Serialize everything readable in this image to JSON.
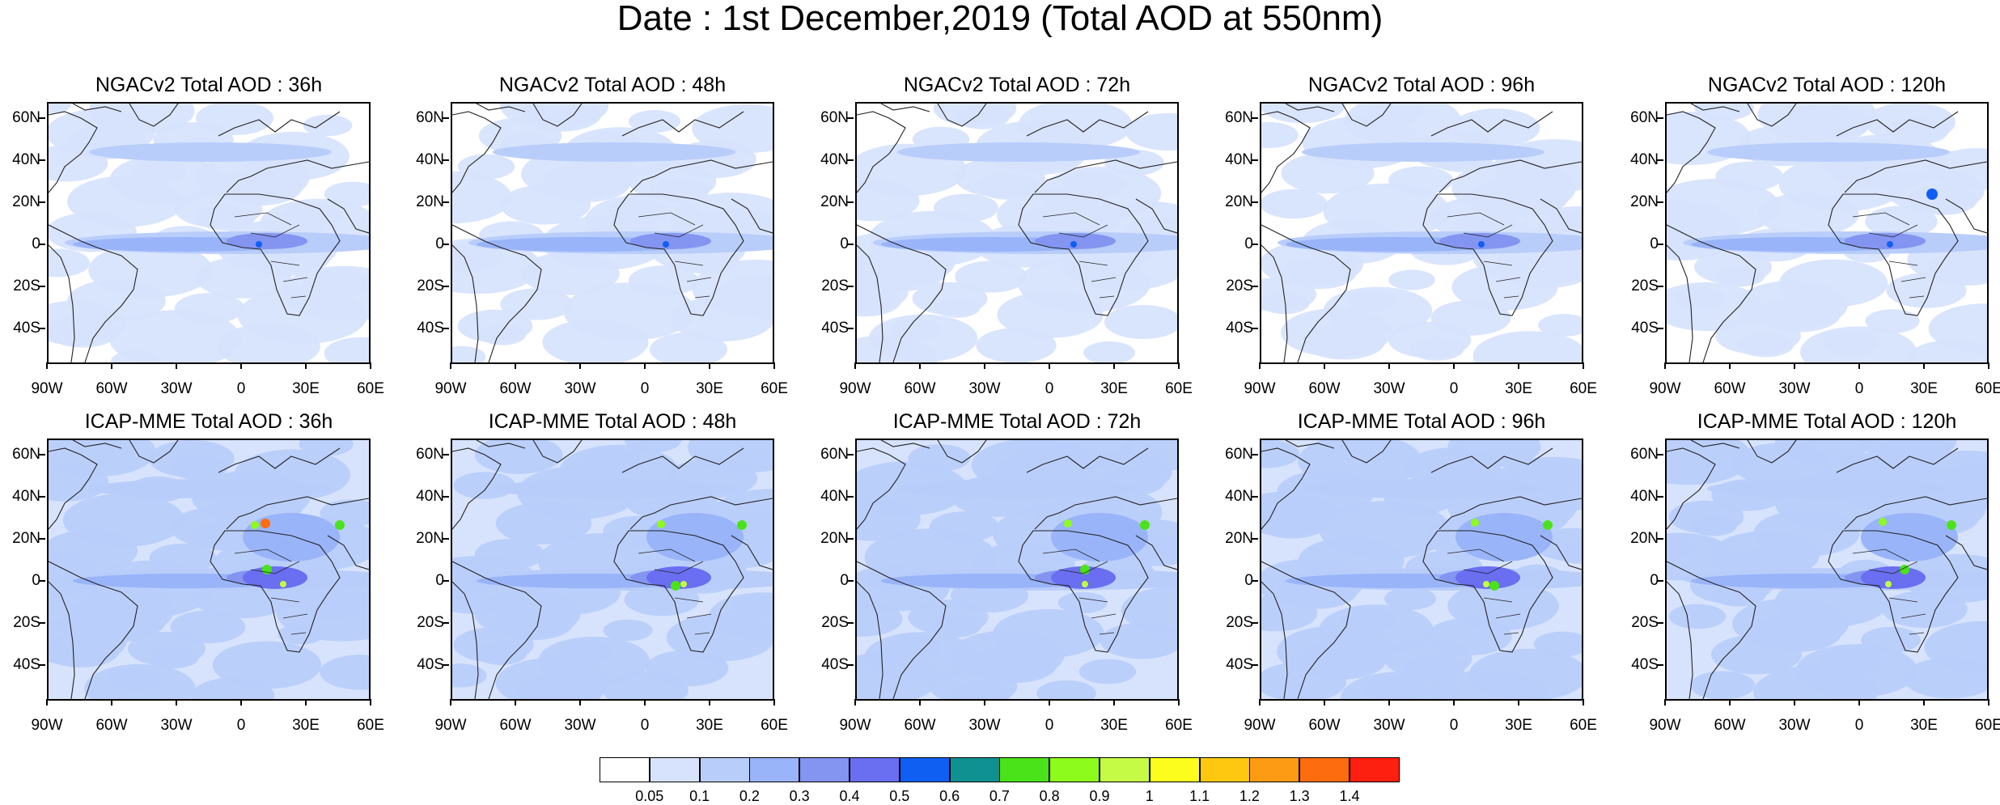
{
  "title": "Date : 1st December,2019 (Total AOD at 550nm)",
  "panels_top": [
    {
      "title": "NGACv2 Total AOD : 36h"
    },
    {
      "title": "NGACv2 Total AOD : 48h"
    },
    {
      "title": "NGACv2 Total AOD : 72h"
    },
    {
      "title": "NGACv2 Total AOD : 96h"
    },
    {
      "title": "NGACv2 Total AOD : 120h"
    }
  ],
  "panels_bottom": [
    {
      "title": "ICAP-MME Total AOD : 36h"
    },
    {
      "title": "ICAP-MME Total AOD : 48h"
    },
    {
      "title": "ICAP-MME Total AOD : 72h"
    },
    {
      "title": "ICAP-MME Total AOD : 96h"
    },
    {
      "title": "ICAP-MME Total AOD : 120h"
    }
  ],
  "lat_labels": [
    "60N",
    "40N",
    "20N",
    "0",
    "20S",
    "40S"
  ],
  "lon_labels": [
    "90W",
    "60W",
    "30W",
    "0",
    "30E",
    "60E"
  ],
  "colorbar": {
    "labels": [
      "0.05",
      "0.1",
      "0.2",
      "0.3",
      "0.4",
      "0.5",
      "0.6",
      "0.7",
      "0.8",
      "0.9",
      "1",
      "1.1",
      "1.2",
      "1.3",
      "1.4"
    ],
    "colors": [
      "#ffffff",
      "#d7e3fd",
      "#b9cdfb",
      "#99b4f9",
      "#8494f1",
      "#6a6ef0",
      "#0f5ff3",
      "#0f9191",
      "#4ae31a",
      "#8dfb1b",
      "#c6fb45",
      "#fdfd1d",
      "#fdc80f",
      "#fd9b14",
      "#fd6c0f",
      "#fd1f0f"
    ]
  }
}
